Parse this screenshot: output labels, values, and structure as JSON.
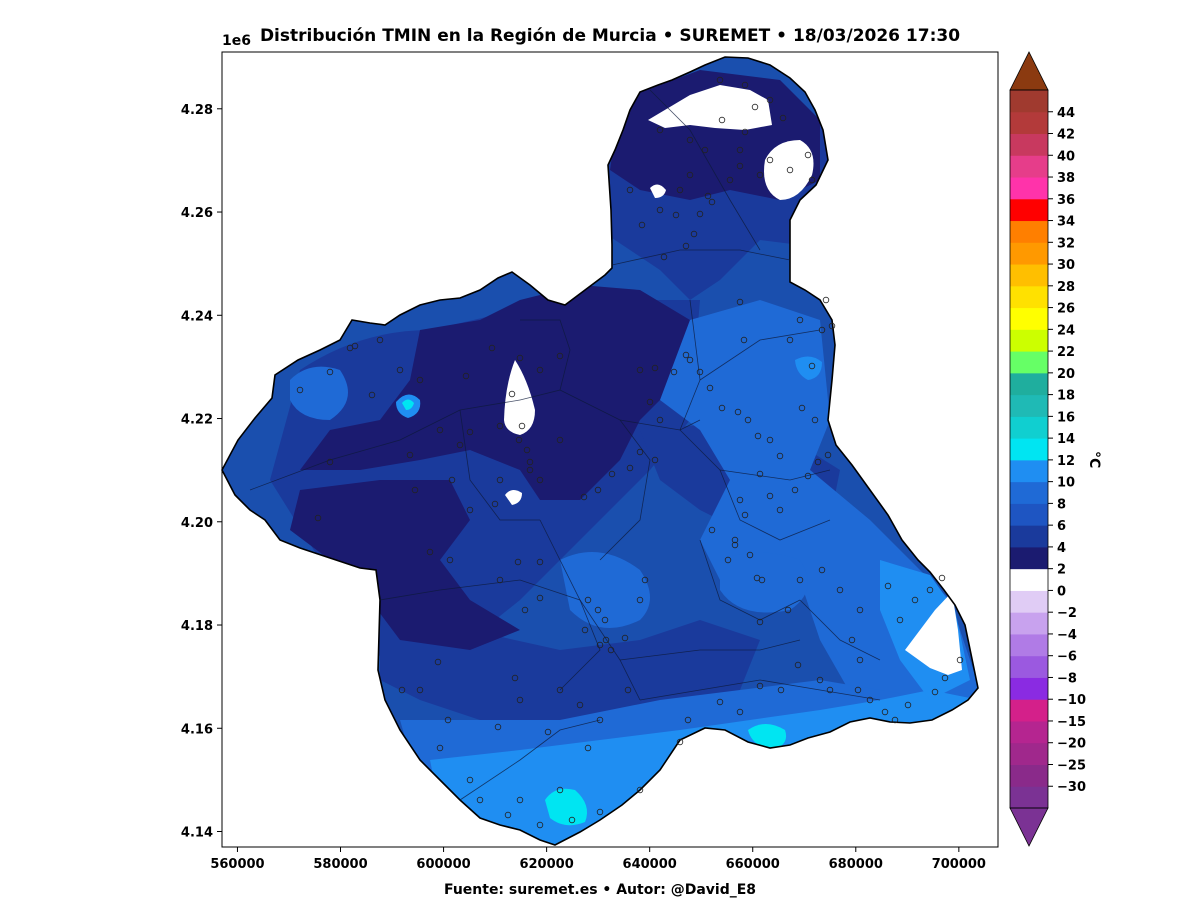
{
  "title": "Distribución TMIN en la Región de Murcia • SUREMET • 18/03/2026 17:30",
  "axis_offset_label": "1e6",
  "colorbar_label": "°C",
  "footer": "Fuente: suremet.es   •   Autor: @David_E8",
  "x_ticks": [
    {
      "value": 560000,
      "label": "560000"
    },
    {
      "value": 580000,
      "label": "580000"
    },
    {
      "value": 600000,
      "label": "600000"
    },
    {
      "value": 620000,
      "label": "620000"
    },
    {
      "value": 640000,
      "label": "640000"
    },
    {
      "value": 660000,
      "label": "660000"
    },
    {
      "value": 680000,
      "label": "680000"
    },
    {
      "value": 700000,
      "label": "700000"
    }
  ],
  "y_ticks": [
    {
      "value": 4140000,
      "label": "4.14"
    },
    {
      "value": 4160000,
      "label": "4.16"
    },
    {
      "value": 4180000,
      "label": "4.18"
    },
    {
      "value": 4200000,
      "label": "4.20"
    },
    {
      "value": 4220000,
      "label": "4.22"
    },
    {
      "value": 4240000,
      "label": "4.24"
    },
    {
      "value": 4260000,
      "label": "4.26"
    },
    {
      "value": 4280000,
      "label": "4.28"
    }
  ],
  "colorbar": {
    "ticks": [
      "−30",
      "−25",
      "−20",
      "−15",
      "−10",
      "−8",
      "−6",
      "−4",
      "−2",
      "0",
      "2",
      "4",
      "6",
      "8",
      "10",
      "12",
      "14",
      "16",
      "18",
      "20",
      "22",
      "24",
      "26",
      "28",
      "30",
      "32",
      "34",
      "36",
      "38",
      "40",
      "42",
      "44"
    ],
    "bins": [
      "#7b3294",
      "#8a2a8a",
      "#a0288c",
      "#b52590",
      "#d4208a",
      "#8a2be2",
      "#9b59e0",
      "#b07be6",
      "#c8a2ee",
      "#e0ccf5",
      "#ffffff",
      "#1b1b70",
      "#1a3a9c",
      "#1e55c2",
      "#1f6ad6",
      "#1f8ef2",
      "#00e5f2",
      "#10cfd0",
      "#1fbab5",
      "#1fae9e",
      "#66ff66",
      "#ccff00",
      "#ffff00",
      "#ffe100",
      "#ffbf00",
      "#ff9900",
      "#ff7f00",
      "#ff0000",
      "#ff33aa",
      "#e63d8a",
      "#c8395f",
      "#b33a3a",
      "#a03a2f"
    ],
    "under_color": "#7b3294",
    "over_color": "#8b3a10"
  },
  "map_colors": {
    "background": "#ffffff",
    "base": "#1a4fae",
    "c_0_2": "#1b1b70",
    "c_2_4": "#1a3a9c",
    "c_6_8": "#1f6ad6",
    "c_8_10": "#1f8ef2",
    "c_10_12": "#00e5f2",
    "below_0": "#ffffff",
    "stations_stroke": "#222222"
  }
}
